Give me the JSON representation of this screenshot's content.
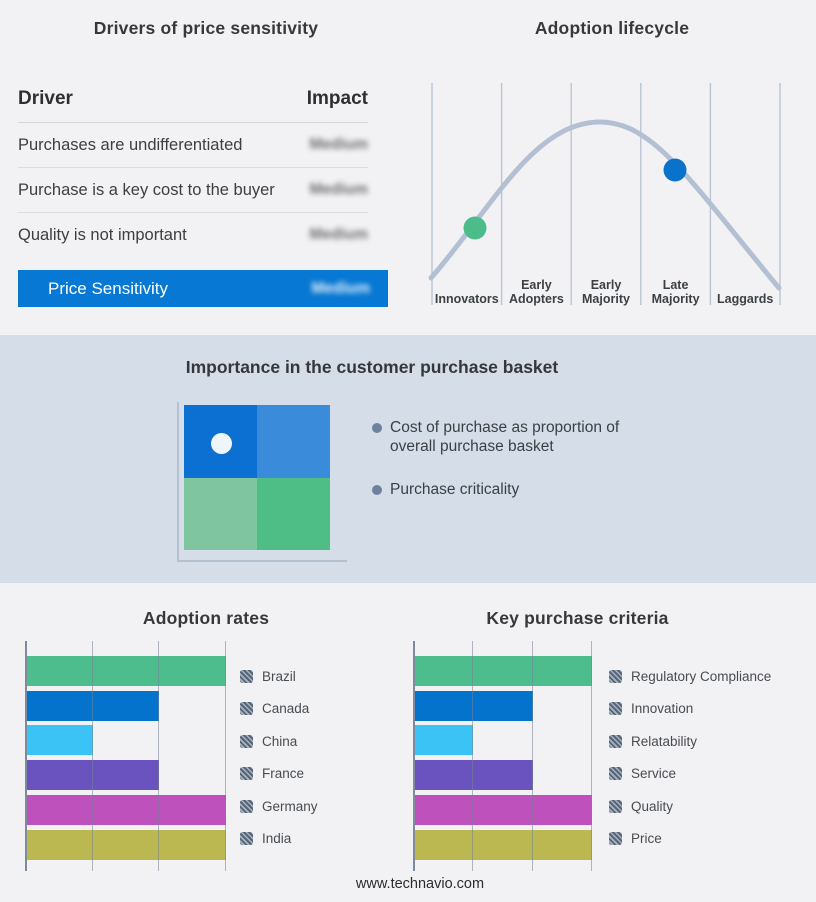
{
  "page": {
    "background": "#f2f2f4",
    "band_background": "#d4dde8",
    "accent_blue": "#0778d3",
    "footer_text": "www.technavio.com"
  },
  "drivers_table": {
    "title": "Drivers of price sensitivity",
    "columns": {
      "driver": "Driver",
      "impact": "Impact"
    },
    "rows": [
      {
        "driver": "Purchases are undifferentiated",
        "impact": "Medium",
        "impact_blurred": true
      },
      {
        "driver": "Purchase is a key cost to the buyer",
        "impact": "Medium",
        "impact_blurred": true
      },
      {
        "driver": "Quality is not important",
        "impact": "Medium",
        "impact_blurred": true
      }
    ],
    "highlight_row": {
      "driver": "Price Sensitivity",
      "impact": "Medium",
      "impact_blurred": true,
      "color": "#0778d3"
    }
  },
  "purchase_basket": {
    "title": "Importance in the customer purchase basket",
    "bullets": [
      "Cost of purchase as proportion of overall purchase basket",
      "Purchase criticality"
    ],
    "quadrant_colors": [
      "#0b70d1",
      "#3a8bd9",
      "#7fc5a0",
      "#4fbd86"
    ],
    "marker": {
      "quadrant": "top-left",
      "color": "#eef5fb"
    }
  },
  "chart_data": [
    {
      "id": "adoption_lifecycle",
      "type": "line",
      "shape": "bell-curve",
      "title": "Adoption lifecycle",
      "categories": [
        "Innovators",
        "Early Adopters",
        "Early Majority",
        "Late Majority",
        "Laggards"
      ],
      "curve_color": "#b3bfd3",
      "gridlines": 6,
      "markers": [
        {
          "stage": "Innovators",
          "position": "rising slope",
          "color": "#4cbd8a"
        },
        {
          "stage": "Late Majority",
          "position": "falling slope",
          "color": "#0b72cc"
        }
      ]
    },
    {
      "id": "adoption_rates",
      "type": "bar",
      "orientation": "horizontal",
      "title": "Adoption rates",
      "categories": [
        "Brazil",
        "Canada",
        "China",
        "France",
        "Germany",
        "India"
      ],
      "values": [
        100,
        66.7,
        33.3,
        66.7,
        100,
        100
      ],
      "xlim": [
        0,
        100
      ],
      "grid": "vertical lines at 0, 33.3, 66.7, 100",
      "colors": [
        "#4ebd8e",
        "#0473cb",
        "#3cc3f5",
        "#6a53be",
        "#bf51bd",
        "#bcb851"
      ],
      "legend_position": "right"
    },
    {
      "id": "key_purchase_criteria",
      "type": "bar",
      "orientation": "horizontal",
      "title": "Key purchase criteria",
      "categories": [
        "Regulatory Compliance",
        "Innovation",
        "Relatability",
        "Service",
        "Quality",
        "Price"
      ],
      "values": [
        100,
        66.7,
        33.3,
        66.7,
        100,
        100
      ],
      "xlim": [
        0,
        100
      ],
      "grid": "vertical lines at 0, 33.3, 66.7, 100",
      "colors": [
        "#4ebd8e",
        "#0473cb",
        "#3cc3f5",
        "#6a53be",
        "#bf51bd",
        "#bcb851"
      ],
      "legend_position": "right"
    }
  ]
}
